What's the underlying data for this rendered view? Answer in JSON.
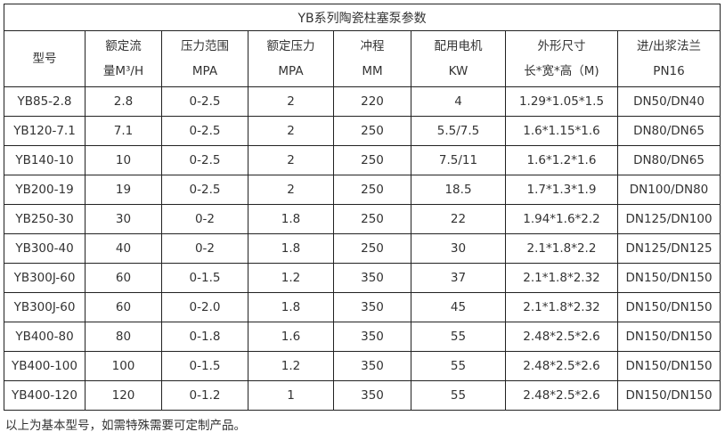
{
  "title": "YB系列陶瓷柱塞泵参数",
  "headers": [
    [
      "型号",
      ""
    ],
    [
      "额定流",
      "量M³/H"
    ],
    [
      "压力范围",
      "MPA"
    ],
    [
      "额定压力",
      "MPA"
    ],
    [
      "冲程",
      "MM"
    ],
    [
      "配用电机",
      "KW"
    ],
    [
      "外形尺寸",
      "长*宽*高（M)"
    ],
    [
      "进/出浆法兰",
      "PN16"
    ]
  ],
  "rows": [
    [
      "YB85-2.8",
      "2.8",
      "0-2.5",
      "2",
      "220",
      "4",
      "1.29*1.05*1.5",
      "DN50/DN40"
    ],
    [
      "YB120-7.1",
      "7.1",
      "0-2.5",
      "2",
      "250",
      "5.5/7.5",
      "1.6*1.15*1.6",
      "DN80/DN65"
    ],
    [
      "YB140-10",
      "10",
      "0-2.5",
      "2",
      "250",
      "7.5/11",
      "1.6*1.2*1.6",
      "DN80/DN65"
    ],
    [
      "YB200-19",
      "19",
      "0-2.5",
      "2",
      "250",
      "18.5",
      "1.7*1.3*1.9",
      "DN100/DN80"
    ],
    [
      "YB250-30",
      "30",
      "0-2",
      "1.8",
      "250",
      "22",
      "1.94*1.6*2.2",
      "DN125/DN100"
    ],
    [
      "YB300-40",
      "40",
      "0-2",
      "1.8",
      "250",
      "30",
      "2.1*1.8*2.2",
      "DN125/DN125"
    ],
    [
      "YB300J-60",
      "60",
      "0-1.5",
      "1.2",
      "350",
      "37",
      "2.1*1.8*2.32",
      "DN150/DN150"
    ],
    [
      "YB300J-60",
      "60",
      "0-2.0",
      "1.8",
      "350",
      "45",
      "2.1*1.8*2.32",
      "DN150/DN150"
    ],
    [
      "YB400-80",
      "80",
      "0-1.8",
      "1.6",
      "350",
      "55",
      "2.48*2.5*2.6",
      "DN150/DN150"
    ],
    [
      "YB400-100",
      "100",
      "0-1.5",
      "1.2",
      "350",
      "55",
      "2.48*2.5*2.6",
      "DN150/DN150"
    ],
    [
      "YB400-120",
      "120",
      "0-1.2",
      "1",
      "350",
      "55",
      "2.48*2.5*2.6",
      "DN150/DN150"
    ]
  ],
  "note": "以上为基本型号，如需特殊需要可定制产品。"
}
